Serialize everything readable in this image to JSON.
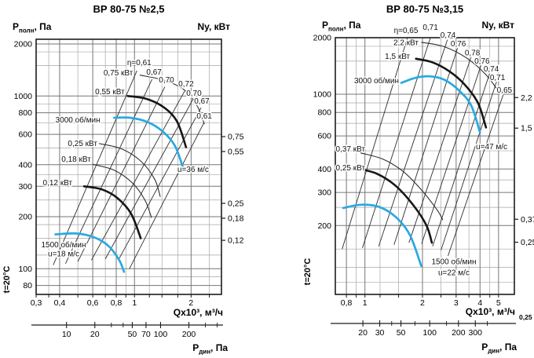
{
  "page": {
    "background": "#ffffff"
  },
  "colors": {
    "curve_blue": "#29a9e0",
    "curve_black": "#161616",
    "thin_line": "#2e2e2e",
    "grid_minor": "#a6a6a6",
    "grid_major": "#767676",
    "frame": "#1c1c1c"
  },
  "chart_data": [
    {
      "type": "line",
      "title": "ВР 80-75 №2,5",
      "y_label": {
        "sym": "Р",
        "sub": "полн",
        "rest": ", Па"
      },
      "ny_label": "Nу, кВт",
      "x_label": "Qх10³, м³/ч",
      "x_label_suffix": "",
      "pdyn_label": {
        "sym": "Р",
        "sub": "дин",
        "rest": ", Па"
      },
      "temp_label": "t=20°C",
      "x_axis": {
        "min": 0.3,
        "max": 2.9,
        "log": true,
        "ticks": [
          [
            0.3,
            "0,3"
          ],
          [
            0.4,
            "0,4"
          ],
          [
            0.6,
            "0,6"
          ],
          [
            0.8,
            "0,8"
          ],
          [
            1,
            "1"
          ],
          [
            2,
            "2"
          ]
        ],
        "minor": [
          0.35,
          0.5,
          0.7,
          0.9,
          1.2,
          1.4,
          1.7,
          2.5
        ]
      },
      "y_axis": {
        "min": 71,
        "max": 2130,
        "log": true,
        "ticks": [
          [
            80,
            "80"
          ],
          [
            100,
            "100"
          ],
          [
            200,
            "200"
          ],
          [
            300,
            "300"
          ],
          [
            400,
            "400"
          ],
          [
            600,
            "600"
          ],
          [
            800,
            "800"
          ],
          [
            1000,
            "1000"
          ],
          [
            2000,
            "2000"
          ]
        ],
        "minor": [
          90,
          120,
          150,
          180,
          250,
          350,
          500,
          700,
          900,
          1500,
          1800
        ]
      },
      "ny_ticks": [
        [
          582,
          "0,75"
        ],
        [
          477,
          "0,55"
        ],
        [
          239,
          "0,25"
        ],
        [
          196,
          "0,18"
        ],
        [
          146,
          "0,12"
        ]
      ],
      "pdyn_axis": {
        "factor": 52.8,
        "ticks": [
          [
            10,
            "10"
          ],
          [
            20,
            "20"
          ],
          [
            50,
            "50"
          ],
          [
            70,
            "70"
          ],
          [
            100,
            "100"
          ],
          [
            200,
            "200"
          ]
        ],
        "minor": [
          30,
          40,
          300,
          400
        ]
      },
      "eta_lines": [
        {
          "eta": "η=0,61",
          "from": [
            0.37,
            105
          ],
          "to": [
            1.03,
            1400
          ],
          "label_at": [
            1.06,
            1555
          ]
        },
        {
          "eta": "0,67",
          "from": [
            0.43,
            107
          ],
          "to": [
            1.24,
            1250
          ],
          "label_at": [
            1.27,
            1370
          ]
        },
        {
          "eta": "0,70",
          "from": [
            0.5,
            110
          ],
          "to": [
            1.45,
            1130
          ],
          "label_at": [
            1.48,
            1235
          ]
        },
        {
          "eta": "0,72",
          "from": [
            0.59,
            112
          ],
          "to": [
            1.85,
            1070
          ],
          "label_at": [
            1.88,
            1170
          ]
        },
        {
          "eta": "0,70",
          "from": [
            0.7,
            114
          ],
          "to": [
            2.04,
            950
          ],
          "label_at": [
            2.07,
            1035
          ]
        },
        {
          "eta": "0,67",
          "from": [
            0.82,
            112
          ],
          "to": [
            2.26,
            855
          ],
          "label_at": [
            2.28,
            930
          ]
        },
        {
          "eta": "0,61",
          "from": [
            0.94,
            100
          ],
          "to": [
            2.34,
            700
          ],
          "label_at": [
            2.35,
            763
          ]
        }
      ],
      "curves": [
        {
          "name": "power-arc-0-75",
          "stroke": "thin",
          "w": 1.1,
          "points": [
            [
              1.07,
              1320
            ],
            [
              1.45,
              1230
            ],
            [
              1.85,
              1080
            ],
            [
              2.15,
              880
            ],
            [
              2.35,
              690
            ]
          ]
        },
        {
          "name": "power-arc-0-25",
          "stroke": "thin",
          "w": 1.1,
          "points": [
            [
              0.65,
              530
            ],
            [
              0.85,
              495
            ],
            [
              1.08,
              420
            ],
            [
              1.28,
              330
            ],
            [
              1.37,
              262
            ]
          ]
        },
        {
          "name": "power-arc-0-18",
          "stroke": "thin",
          "w": 1.1,
          "points": [
            [
              0.6,
              402
            ],
            [
              0.78,
              372
            ],
            [
              0.98,
              312
            ],
            [
              1.14,
              248
            ],
            [
              1.23,
              198
            ]
          ]
        },
        {
          "name": "fan-curve-3000-total",
          "stroke": "black",
          "w": 2.6,
          "points": [
            [
              0.92,
              1000
            ],
            [
              1.15,
              965
            ],
            [
              1.42,
              865
            ],
            [
              1.68,
              715
            ],
            [
              1.88,
              505
            ]
          ]
        },
        {
          "name": "fan-curve-1500-total",
          "stroke": "black",
          "w": 2.6,
          "points": [
            [
              0.54,
              300
            ],
            [
              0.67,
              288
            ],
            [
              0.81,
              257
            ],
            [
              0.96,
              208
            ],
            [
              1.08,
              150
            ]
          ]
        },
        {
          "name": "fan-curve-3000-working",
          "stroke": "blue",
          "w": 2.7,
          "points": [
            [
              0.78,
              748
            ],
            [
              0.95,
              748
            ],
            [
              1.18,
              705
            ],
            [
              1.42,
              620
            ],
            [
              1.64,
              515
            ],
            [
              1.8,
              392
            ]
          ]
        },
        {
          "name": "fan-curve-1500-working",
          "stroke": "blue",
          "w": 2.7,
          "points": [
            [
              0.38,
              158
            ],
            [
              0.49,
              160
            ],
            [
              0.61,
              152
            ],
            [
              0.73,
              135
            ],
            [
              0.83,
              112
            ],
            [
              0.88,
              96
            ]
          ]
        }
      ],
      "annotations": [
        {
          "text": "0,75 кВт",
          "q": 0.82,
          "p": 1360
        },
        {
          "text": "0,55 кВт",
          "q": 0.74,
          "p": 1055
        },
        {
          "text": "3000 об/мин",
          "q": 0.5,
          "p": 725
        },
        {
          "text": "0,25 кВт",
          "q": 0.53,
          "p": 530
        },
        {
          "text": "0,18 кВт",
          "q": 0.49,
          "p": 430
        },
        {
          "text": "0,12 кВт",
          "q": 0.39,
          "p": 313
        },
        {
          "text": "1500 об/мин",
          "q": 0.42,
          "p": 137
        },
        {
          "text": "u=18 м/с",
          "q": 0.42,
          "p": 122
        },
        {
          "text": "u=36 м/с",
          "q": 2.05,
          "p": 375
        }
      ]
    },
    {
      "type": "line",
      "title": "ВР 80-75 №3,15",
      "y_label": {
        "sym": "Р",
        "sub": "полн",
        "rest": ", Па"
      },
      "ny_label": "Nу, кВт",
      "x_label": "Qх10³, м³/ч",
      "x_label_suffix": "0,25",
      "pdyn_label": {
        "sym": "Р",
        "sub": "дин",
        "rest": ", Па"
      },
      "temp_label": "t=20°C",
      "x_axis": {
        "min": 0.7,
        "max": 6.05,
        "log": true,
        "ticks": [
          [
            0.8,
            "0,8"
          ],
          [
            1,
            "1"
          ],
          [
            2,
            "2"
          ],
          [
            3,
            "3"
          ],
          [
            4,
            "4"
          ],
          [
            5,
            "5"
          ]
        ],
        "minor": [
          0.9,
          1.2,
          1.5,
          2.5,
          3.5,
          4.5
        ]
      },
      "y_axis": {
        "min": 86,
        "max": 2000,
        "log": true,
        "ticks": [
          [
            200,
            "200"
          ],
          [
            300,
            "300"
          ],
          [
            400,
            "400"
          ],
          [
            600,
            "600"
          ],
          [
            800,
            "800"
          ],
          [
            1000,
            "1000"
          ],
          [
            2000,
            "2000"
          ]
        ],
        "minor": [
          100,
          120,
          150,
          250,
          350,
          500,
          700,
          900,
          1500,
          1800
        ]
      },
      "ny_ticks": [
        [
          960,
          "2,2"
        ],
        [
          660,
          "1,5"
        ],
        [
          216,
          "0,37"
        ],
        [
          163,
          "0,25"
        ]
      ],
      "pdyn_axis": {
        "factor": 21,
        "ticks": [
          [
            20,
            "20"
          ],
          [
            30,
            "30"
          ],
          [
            50,
            "50"
          ],
          [
            100,
            "100"
          ],
          [
            200,
            "200"
          ],
          [
            300,
            "300"
          ]
        ],
        "minor": [
          40,
          70,
          150,
          400
        ]
      },
      "eta_lines": [
        {
          "eta": "η=0,65",
          "from": [
            0.76,
            150
          ],
          "to": [
            1.67,
            2000
          ],
          "label_at": [
            1.64,
            2180
          ]
        },
        {
          "eta": "0,71",
          "from": [
            0.97,
            152
          ],
          "to": [
            2.2,
            2000
          ],
          "label_at": [
            2.2,
            2270
          ]
        },
        {
          "eta": "0,74",
          "from": [
            1.18,
            155
          ],
          "to": [
            2.7,
            1950
          ],
          "label_at": [
            2.72,
            2060
          ]
        },
        {
          "eta": "0,76",
          "from": [
            1.42,
            158
          ],
          "to": [
            3.05,
            1760
          ],
          "label_at": [
            3.08,
            1850
          ]
        },
        {
          "eta": "0,78",
          "from": [
            1.7,
            162
          ],
          "to": [
            3.6,
            1590
          ],
          "label_at": [
            3.65,
            1660
          ]
        },
        {
          "eta": "0,76",
          "from": [
            1.98,
            160
          ],
          "to": [
            4.05,
            1430
          ],
          "label_at": [
            4.1,
            1495
          ]
        },
        {
          "eta": "0,74",
          "from": [
            2.26,
            155
          ],
          "to": [
            4.5,
            1300
          ],
          "label_at": [
            4.58,
            1360
          ]
        },
        {
          "eta": "0,71",
          "from": [
            2.5,
            148
          ],
          "to": [
            4.88,
            1165
          ],
          "label_at": [
            4.94,
            1225
          ]
        },
        {
          "eta": "0,65",
          "from": [
            2.72,
            138
          ],
          "to": [
            5.3,
            1000
          ],
          "label_at": [
            5.37,
            1050
          ]
        }
      ],
      "curves": [
        {
          "name": "power-arc-2-2",
          "stroke": "thin",
          "w": 1.1,
          "points": [
            [
              1.98,
              1890
            ],
            [
              2.6,
              1790
            ],
            [
              3.4,
              1560
            ],
            [
              4.3,
              1270
            ],
            [
              5.08,
              1010
            ]
          ]
        },
        {
          "name": "power-arc-0-37",
          "stroke": "thin",
          "w": 1.1,
          "points": [
            [
              0.95,
              487
            ],
            [
              1.25,
              450
            ],
            [
              1.6,
              385
            ],
            [
              2.0,
              305
            ],
            [
              2.4,
              240
            ],
            [
              2.55,
              215
            ]
          ]
        },
        {
          "name": "fan-curve-3000-total",
          "stroke": "black",
          "w": 2.6,
          "points": [
            [
              1.85,
              1545
            ],
            [
              2.25,
              1480
            ],
            [
              2.75,
              1330
            ],
            [
              3.3,
              1135
            ],
            [
              3.9,
              900
            ],
            [
              4.3,
              665
            ]
          ]
        },
        {
          "name": "fan-curve-1500-total",
          "stroke": "black",
          "w": 2.6,
          "points": [
            [
              0.93,
              400
            ],
            [
              1.15,
              378
            ],
            [
              1.45,
              325
            ],
            [
              1.8,
              255
            ],
            [
              2.1,
              200
            ],
            [
              2.24,
              162
            ]
          ]
        },
        {
          "name": "fan-curve-3000-working",
          "stroke": "blue",
          "w": 2.7,
          "points": [
            [
              1.55,
              1150
            ],
            [
              1.85,
              1225
            ],
            [
              2.2,
              1245
            ],
            [
              2.6,
              1195
            ],
            [
              3.1,
              1050
            ],
            [
              3.6,
              870
            ],
            [
              4.0,
              625
            ]
          ]
        },
        {
          "name": "fan-curve-1500-working",
          "stroke": "blue",
          "w": 2.7,
          "points": [
            [
              0.77,
              248
            ],
            [
              0.95,
              258
            ],
            [
              1.18,
              252
            ],
            [
              1.45,
              222
            ],
            [
              1.72,
              178
            ],
            [
              1.97,
              122
            ]
          ]
        }
      ],
      "annotations": [
        {
          "text": "2,2 кВт",
          "q": 1.64,
          "p": 1880
        },
        {
          "text": "1,5 кВт",
          "q": 1.48,
          "p": 1590
        },
        {
          "text": "3000 об/мин",
          "q": 1.15,
          "p": 1180
        },
        {
          "text": "0,37 кВт",
          "q": 0.84,
          "p": 510
        },
        {
          "text": "0,25 кВт",
          "q": 0.84,
          "p": 404
        },
        {
          "text": "1500 об/мин",
          "q": 2.92,
          "p": 128
        },
        {
          "text": "u=22 м/с",
          "q": 2.92,
          "p": 112
        },
        {
          "text": "u=47 м/с",
          "q": 4.6,
          "p": 525
        }
      ]
    }
  ]
}
